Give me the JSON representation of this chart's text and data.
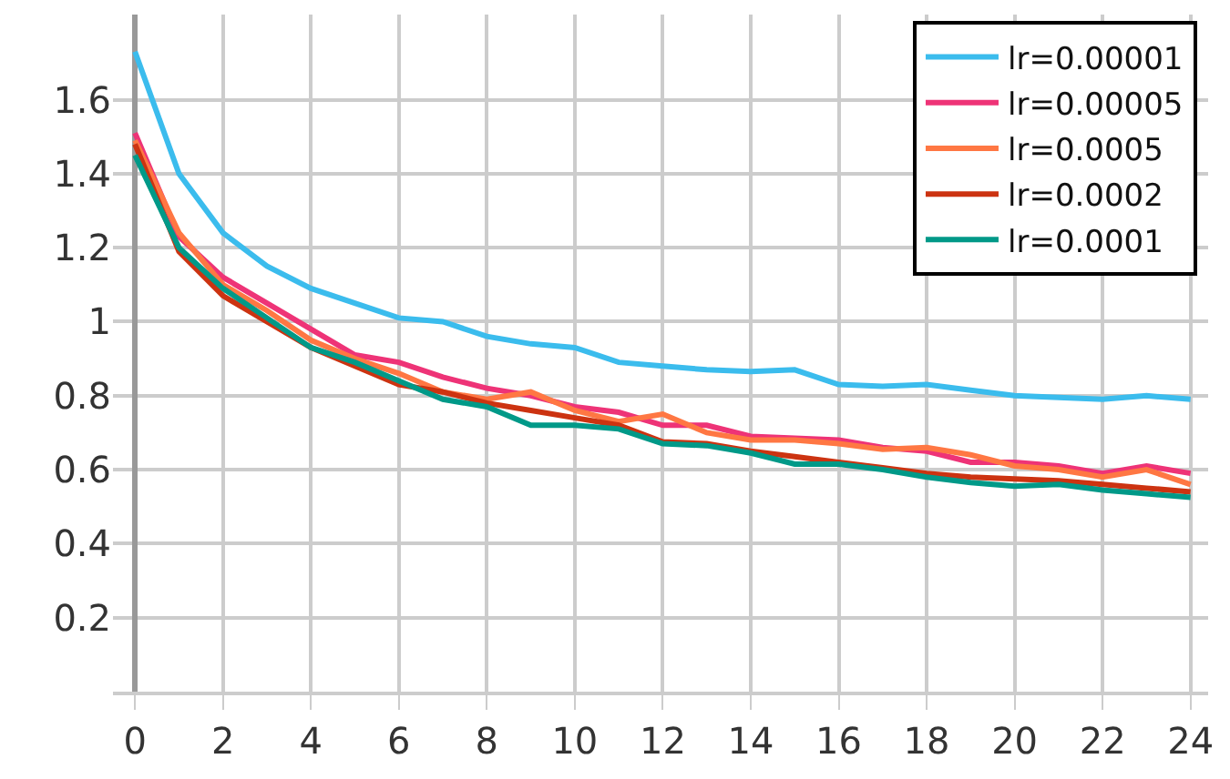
{
  "chart_data": {
    "type": "line",
    "x": [
      0,
      1,
      2,
      3,
      4,
      5,
      6,
      7,
      8,
      9,
      10,
      11,
      12,
      13,
      14,
      15,
      16,
      17,
      18,
      19,
      20,
      21,
      22,
      23,
      24
    ],
    "series": [
      {
        "name": "lr=0.00001",
        "color": "#3bbced",
        "values": [
          1.73,
          1.4,
          1.24,
          1.15,
          1.09,
          1.05,
          1.01,
          1.0,
          0.96,
          0.94,
          0.93,
          0.89,
          0.88,
          0.87,
          0.865,
          0.87,
          0.83,
          0.825,
          0.83,
          0.815,
          0.8,
          0.795,
          0.79,
          0.8,
          0.79
        ]
      },
      {
        "name": "lr=0.00005",
        "color": "#ee3377",
        "values": [
          1.51,
          1.23,
          1.12,
          1.05,
          0.98,
          0.91,
          0.89,
          0.85,
          0.82,
          0.8,
          0.77,
          0.755,
          0.72,
          0.72,
          0.69,
          0.685,
          0.68,
          0.66,
          0.65,
          0.62,
          0.62,
          0.61,
          0.59,
          0.61,
          0.59
        ]
      },
      {
        "name": "lr=0.0005",
        "color": "#ff7743",
        "values": [
          1.49,
          1.24,
          1.1,
          1.03,
          0.95,
          0.9,
          0.86,
          0.81,
          0.79,
          0.81,
          0.76,
          0.73,
          0.75,
          0.7,
          0.68,
          0.68,
          0.67,
          0.655,
          0.66,
          0.64,
          0.61,
          0.6,
          0.58,
          0.6,
          0.56
        ]
      },
      {
        "name": "lr=0.0002",
        "color": "#cc3311",
        "values": [
          1.48,
          1.19,
          1.07,
          1.0,
          0.93,
          0.88,
          0.83,
          0.81,
          0.78,
          0.76,
          0.74,
          0.72,
          0.675,
          0.67,
          0.65,
          0.635,
          0.62,
          0.605,
          0.59,
          0.58,
          0.575,
          0.57,
          0.56,
          0.55,
          0.54
        ]
      },
      {
        "name": "lr=0.0001",
        "color": "#009988",
        "values": [
          1.45,
          1.2,
          1.09,
          1.01,
          0.93,
          0.89,
          0.84,
          0.79,
          0.77,
          0.72,
          0.72,
          0.71,
          0.67,
          0.665,
          0.645,
          0.615,
          0.615,
          0.6,
          0.58,
          0.565,
          0.555,
          0.56,
          0.545,
          0.535,
          0.525
        ]
      }
    ],
    "xlim": [
      -0.5,
      24.4
    ],
    "xticks": [
      0,
      2,
      4,
      6,
      8,
      10,
      12,
      14,
      16,
      18,
      20,
      22,
      24
    ],
    "ylim": [
      0,
      1.83
    ],
    "yticks": [
      0.2,
      0.4,
      0.6,
      0.8,
      1,
      1.2,
      1.4,
      1.6
    ],
    "grid": true,
    "legend": "top right",
    "marker": "none",
    "line_style": "solid"
  }
}
